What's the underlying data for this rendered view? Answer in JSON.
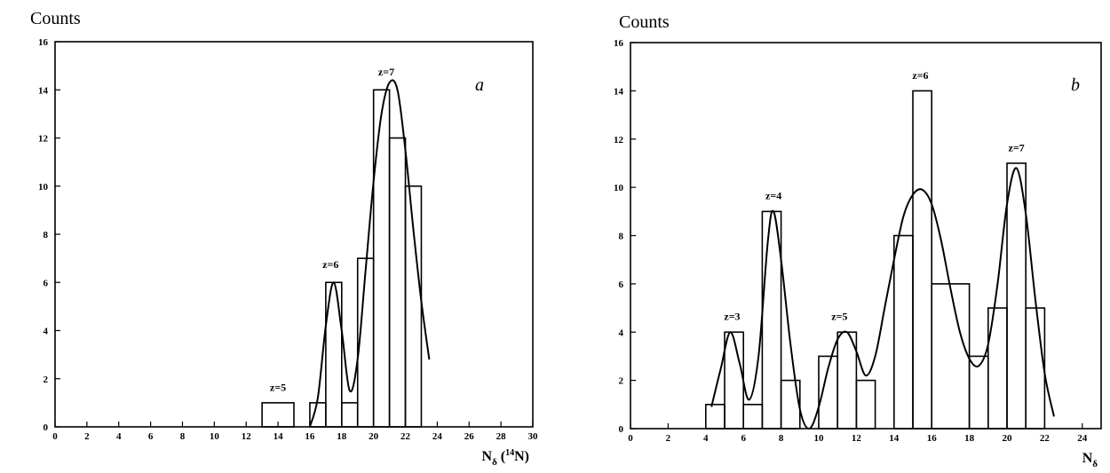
{
  "chart_data": [
    {
      "type": "bar",
      "panel_label": "a",
      "ylabel": "Counts",
      "xlabel_parts": [
        "N",
        "δ",
        " (",
        "14",
        "N)"
      ],
      "xlim": [
        0,
        30
      ],
      "ylim": [
        0,
        16
      ],
      "xticks": [
        0,
        2,
        4,
        6,
        8,
        10,
        12,
        14,
        16,
        18,
        20,
        22,
        24,
        26,
        28,
        30
      ],
      "yticks": [
        0,
        2,
        4,
        6,
        8,
        10,
        12,
        14,
        16
      ],
      "bins": [
        {
          "x0": 13,
          "x1": 15,
          "count": 1
        },
        {
          "x0": 16,
          "x1": 17,
          "count": 1
        },
        {
          "x0": 17,
          "x1": 18,
          "count": 6
        },
        {
          "x0": 18,
          "x1": 19,
          "count": 1
        },
        {
          "x0": 19,
          "x1": 20,
          "count": 7
        },
        {
          "x0": 20,
          "x1": 21,
          "count": 14
        },
        {
          "x0": 21,
          "x1": 22,
          "count": 12
        },
        {
          "x0": 22,
          "x1": 23,
          "count": 10
        }
      ],
      "fit_curve": [
        [
          16.0,
          0.0
        ],
        [
          16.5,
          1.2
        ],
        [
          17.0,
          4.2
        ],
        [
          17.5,
          6.0
        ],
        [
          18.0,
          4.0
        ],
        [
          18.5,
          1.5
        ],
        [
          19.0,
          2.8
        ],
        [
          19.5,
          6.5
        ],
        [
          20.0,
          10.2
        ],
        [
          20.5,
          13.0
        ],
        [
          21.0,
          14.3
        ],
        [
          21.5,
          14.0
        ],
        [
          22.0,
          11.5
        ],
        [
          22.5,
          8.2
        ],
        [
          23.0,
          5.2
        ],
        [
          23.5,
          2.8
        ]
      ],
      "annotations": [
        {
          "text": "z=5",
          "x": 14.0,
          "y": 1.5
        },
        {
          "text": "z=6",
          "x": 17.3,
          "y": 6.6
        },
        {
          "text": "z=7",
          "x": 20.8,
          "y": 14.6
        }
      ]
    },
    {
      "type": "bar",
      "panel_label": "b",
      "ylabel": "Counts",
      "xlabel_parts": [
        "N",
        "δ"
      ],
      "xlim": [
        0,
        25
      ],
      "ylim": [
        0,
        16
      ],
      "xticks": [
        0,
        2,
        4,
        6,
        8,
        10,
        12,
        14,
        16,
        18,
        20,
        22,
        24
      ],
      "yticks": [
        0,
        2,
        4,
        6,
        8,
        10,
        12,
        14,
        16
      ],
      "bins": [
        {
          "x0": 4,
          "x1": 5,
          "count": 1
        },
        {
          "x0": 5,
          "x1": 6,
          "count": 4
        },
        {
          "x0": 6,
          "x1": 7,
          "count": 1
        },
        {
          "x0": 7,
          "x1": 8,
          "count": 9
        },
        {
          "x0": 8,
          "x1": 9,
          "count": 2
        },
        {
          "x0": 10,
          "x1": 11,
          "count": 3
        },
        {
          "x0": 11,
          "x1": 12,
          "count": 4
        },
        {
          "x0": 12,
          "x1": 13,
          "count": 2
        },
        {
          "x0": 14,
          "x1": 15,
          "count": 8
        },
        {
          "x0": 15,
          "x1": 16,
          "count": 14
        },
        {
          "x0": 16,
          "x1": 18,
          "count": 6
        },
        {
          "x0": 18,
          "x1": 19,
          "count": 3
        },
        {
          "x0": 19,
          "x1": 20,
          "count": 5
        },
        {
          "x0": 20,
          "x1": 21,
          "count": 11
        },
        {
          "x0": 21,
          "x1": 22,
          "count": 5
        }
      ],
      "fit_curve": [
        [
          4.3,
          0.9
        ],
        [
          4.8,
          2.5
        ],
        [
          5.3,
          4.0
        ],
        [
          5.8,
          2.7
        ],
        [
          6.3,
          1.2
        ],
        [
          6.8,
          3.0
        ],
        [
          7.3,
          7.8
        ],
        [
          7.6,
          9.0
        ],
        [
          8.0,
          7.0
        ],
        [
          8.5,
          3.5
        ],
        [
          9.0,
          0.8
        ],
        [
          9.5,
          0.0
        ],
        [
          10.0,
          0.9
        ],
        [
          10.5,
          2.5
        ],
        [
          11.0,
          3.7
        ],
        [
          11.5,
          4.0
        ],
        [
          12.0,
          3.2
        ],
        [
          12.5,
          2.2
        ],
        [
          13.0,
          3.0
        ],
        [
          13.5,
          5.0
        ],
        [
          14.0,
          7.0
        ],
        [
          14.5,
          8.8
        ],
        [
          15.0,
          9.7
        ],
        [
          15.5,
          9.9
        ],
        [
          16.0,
          9.3
        ],
        [
          16.5,
          7.8
        ],
        [
          17.0,
          5.8
        ],
        [
          17.5,
          4.0
        ],
        [
          18.0,
          2.9
        ],
        [
          18.5,
          2.6
        ],
        [
          19.0,
          3.5
        ],
        [
          19.5,
          6.0
        ],
        [
          20.0,
          9.3
        ],
        [
          20.5,
          10.8
        ],
        [
          21.0,
          8.9
        ],
        [
          21.5,
          5.4
        ],
        [
          22.0,
          2.3
        ],
        [
          22.5,
          0.5
        ]
      ],
      "annotations": [
        {
          "text": "z=3",
          "x": 5.4,
          "y": 4.5
        },
        {
          "text": "z=4",
          "x": 7.6,
          "y": 9.5
        },
        {
          "text": "z=5",
          "x": 11.1,
          "y": 4.5
        },
        {
          "text": "z=6",
          "x": 15.4,
          "y": 14.5
        },
        {
          "text": "z=7",
          "x": 20.5,
          "y": 11.5
        }
      ]
    }
  ]
}
